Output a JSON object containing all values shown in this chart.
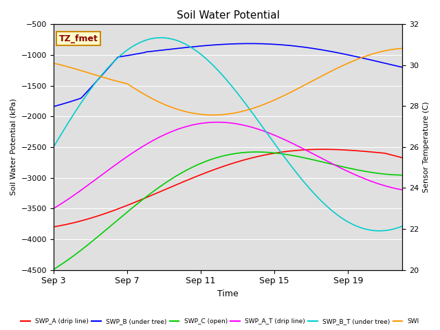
{
  "title": "Soil Water Potential",
  "xlabel": "Time",
  "ylabel_left": "Soil Water Potential (kPa)",
  "ylabel_right": "Sensor Temperature (C)",
  "ylim_left": [
    -4500,
    -500
  ],
  "ylim_right": [
    20,
    32
  ],
  "yticks_left": [
    -4500,
    -4000,
    -3500,
    -3000,
    -2500,
    -2000,
    -1500,
    -1000,
    -500
  ],
  "yticks_right": [
    20,
    22,
    24,
    26,
    28,
    30,
    32
  ],
  "plot_bg": "#e0e0e0",
  "fig_bg": "#ffffff",
  "label_box_text": "TZ_fmet",
  "label_box_bg": "#ffffcc",
  "label_box_border": "#cc8800",
  "series": [
    {
      "name": "SWP_A (drip line)",
      "color": "#ff0000"
    },
    {
      "name": "SWP_B (under tree)",
      "color": "#0000ff"
    },
    {
      "name": "SWP_C (open)",
      "color": "#00cc00"
    },
    {
      "name": "SWP_A_T (drip line)",
      "color": "#ff00ff"
    },
    {
      "name": "SWP_B_T (under tree)",
      "color": "#00cccc"
    },
    {
      "name": "SWI",
      "color": "#ff9900"
    }
  ],
  "xtick_labels": [
    "Sep 3",
    "Sep 7",
    "Sep 11",
    "Sep 15",
    "Sep 19"
  ],
  "xtick_days": [
    0,
    4,
    8,
    12,
    16
  ],
  "num_days": 19,
  "pts_per_day": 24
}
